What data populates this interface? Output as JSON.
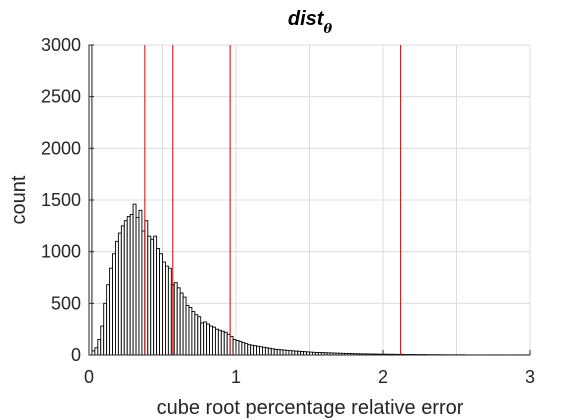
{
  "chart_data": {
    "type": "bar",
    "title": "dist",
    "title_subscript": "θ",
    "xlabel": "cube root percentage relative error",
    "ylabel": "count",
    "xlim": [
      0,
      3
    ],
    "ylim": [
      0,
      3000
    ],
    "xticks": [
      0,
      1,
      2,
      3
    ],
    "yticks": [
      0,
      500,
      1000,
      1500,
      2000,
      2500,
      3000
    ],
    "grid": true,
    "bin_width": 0.02,
    "bin_start": 0,
    "counts": [
      3000,
      40,
      70,
      150,
      280,
      500,
      680,
      840,
      980,
      1100,
      1180,
      1250,
      1300,
      1340,
      1360,
      1460,
      1330,
      1400,
      1200,
      1300,
      1150,
      1120,
      1150,
      1030,
      980,
      900,
      860,
      840,
      680,
      700,
      650,
      600,
      560,
      480,
      460,
      420,
      390,
      370,
      310,
      320,
      300,
      280,
      270,
      250,
      240,
      230,
      220,
      200,
      180,
      150,
      140,
      130,
      120,
      110,
      100,
      95,
      90,
      85,
      80,
      75,
      70,
      65,
      60,
      55,
      52,
      50,
      48,
      45,
      42,
      40,
      38,
      36,
      34,
      32,
      30,
      28,
      26,
      25,
      24,
      23,
      22,
      21,
      20,
      19,
      18,
      17,
      16,
      15,
      14,
      13,
      12,
      12,
      11,
      11,
      10,
      10,
      9,
      9,
      8,
      8,
      8,
      7,
      7,
      7,
      6,
      6,
      6,
      5,
      5,
      5,
      5,
      4,
      4,
      4,
      4,
      3,
      3,
      3,
      3,
      3,
      2,
      2,
      2,
      2,
      2,
      2,
      2,
      2,
      1,
      1,
      1,
      1,
      1,
      1,
      1,
      1,
      1,
      1,
      1,
      1,
      1,
      1,
      1,
      1,
      1,
      1,
      1,
      1,
      1,
      1
    ],
    "reference_lines_x": [
      0.38,
      0.57,
      0.96,
      2.12
    ],
    "colors": {
      "bar_fill": "#ffffff",
      "bar_edge": "#000000",
      "reference_line": "#d00000",
      "grid": "#dcdcdc",
      "axis": "#262626"
    }
  }
}
